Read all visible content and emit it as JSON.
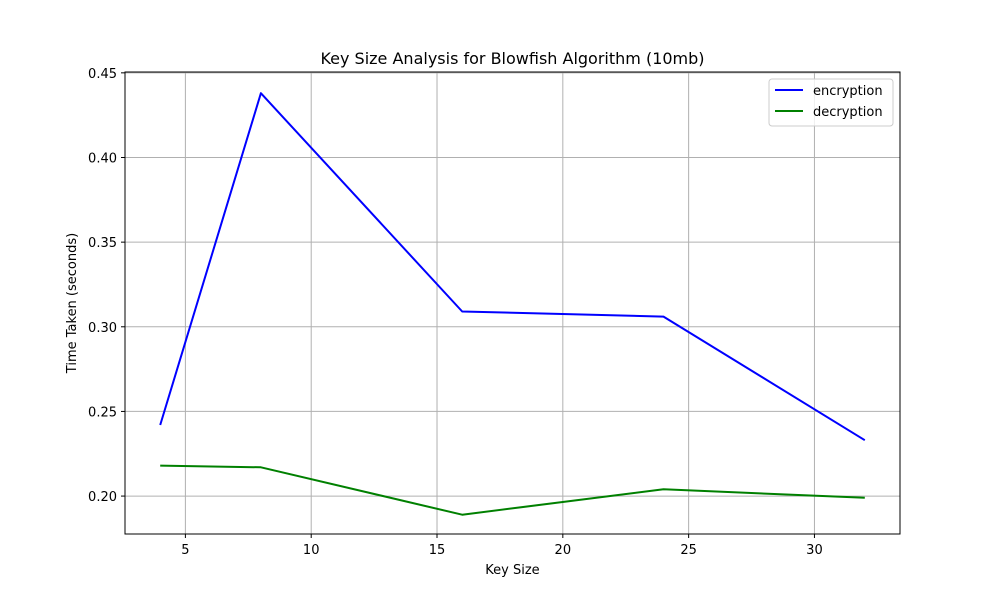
{
  "chart_data": {
    "type": "line",
    "title": "Key Size Analysis for Blowfish Algorithm (10mb)",
    "xlabel": "Key Size",
    "ylabel": "Time Taken (seconds)",
    "x": [
      4,
      8,
      16,
      24,
      32
    ],
    "series": [
      {
        "name": "encryption",
        "color": "#0000ff",
        "values": [
          0.242,
          0.438,
          0.309,
          0.306,
          0.233
        ]
      },
      {
        "name": "decryption",
        "color": "#008000",
        "values": [
          0.218,
          0.217,
          0.189,
          0.204,
          0.199
        ]
      }
    ],
    "xlim": [
      2.6,
      33.4
    ],
    "ylim": [
      0.1776,
      0.4505
    ],
    "xticks": [
      5,
      10,
      15,
      20,
      25,
      30
    ],
    "xtick_labels": [
      "5",
      "10",
      "15",
      "20",
      "25",
      "30"
    ],
    "yticks": [
      0.2,
      0.25,
      0.3,
      0.35,
      0.4,
      0.45
    ],
    "ytick_labels": [
      "0.20",
      "0.25",
      "0.30",
      "0.35",
      "0.40",
      "0.45"
    ],
    "grid": true,
    "legend_position": "top-right"
  }
}
